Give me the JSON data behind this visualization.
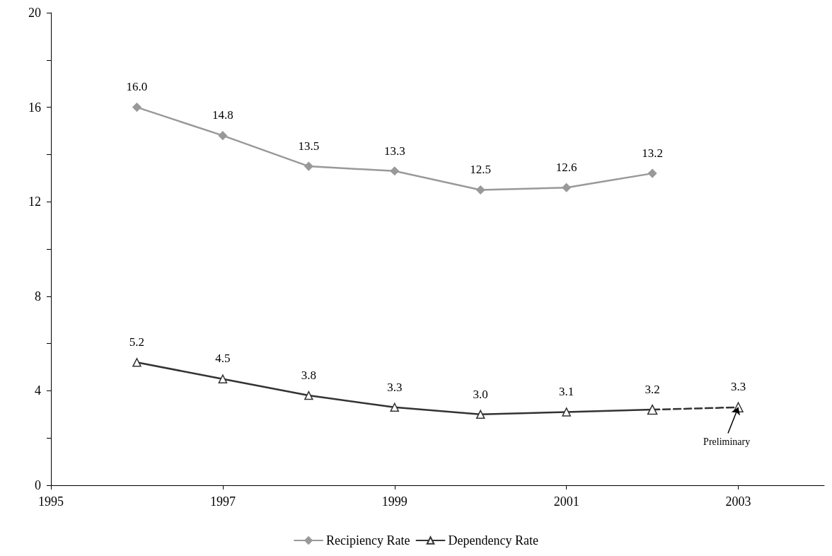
{
  "chart_data": {
    "type": "line",
    "xlim": [
      1995,
      2004
    ],
    "xticks": [
      1995,
      1997,
      1999,
      2001,
      2003
    ],
    "ylim": [
      0,
      20
    ],
    "yticks": [
      0,
      {
        "value": 2,
        "label": null
      },
      4,
      {
        "value": 6,
        "label": null
      },
      8,
      {
        "value": 10,
        "label": null
      },
      12,
      {
        "value": 14,
        "label": null
      },
      16,
      {
        "value": 18,
        "label": null
      },
      20
    ],
    "grid": false,
    "legend": "bottom",
    "x": [
      1996,
      1997,
      1998,
      1999,
      2000,
      2001,
      2002
    ],
    "series": [
      {
        "name": "Recipiency Rate",
        "color": "#999999",
        "marker": "diamond",
        "values": [
          16.0,
          14.8,
          13.5,
          13.3,
          12.5,
          12.6,
          13.2
        ],
        "value_labels": [
          "16.0",
          "14.8",
          "13.5",
          "13.3",
          "12.5",
          "12.6",
          "13.2"
        ]
      },
      {
        "name": "Dependency Rate",
        "color": "#333333",
        "marker": "triangle",
        "values": [
          5.2,
          4.5,
          3.8,
          3.3,
          3.0,
          3.1,
          3.2
        ],
        "value_labels": [
          "5.2",
          "4.5",
          "3.8",
          "3.3",
          "3.0",
          "3.1",
          "3.2"
        ]
      },
      {
        "color": "#333333",
        "marker": "triangle",
        "line_style": "dashed",
        "x": [
          2002,
          2003
        ],
        "values": [
          3.2,
          3.3
        ],
        "value_labels": [
          null,
          "3.3"
        ]
      }
    ],
    "annotations": [
      {
        "text": "Preliminary",
        "x": 2003,
        "y": 3.3
      }
    ]
  }
}
